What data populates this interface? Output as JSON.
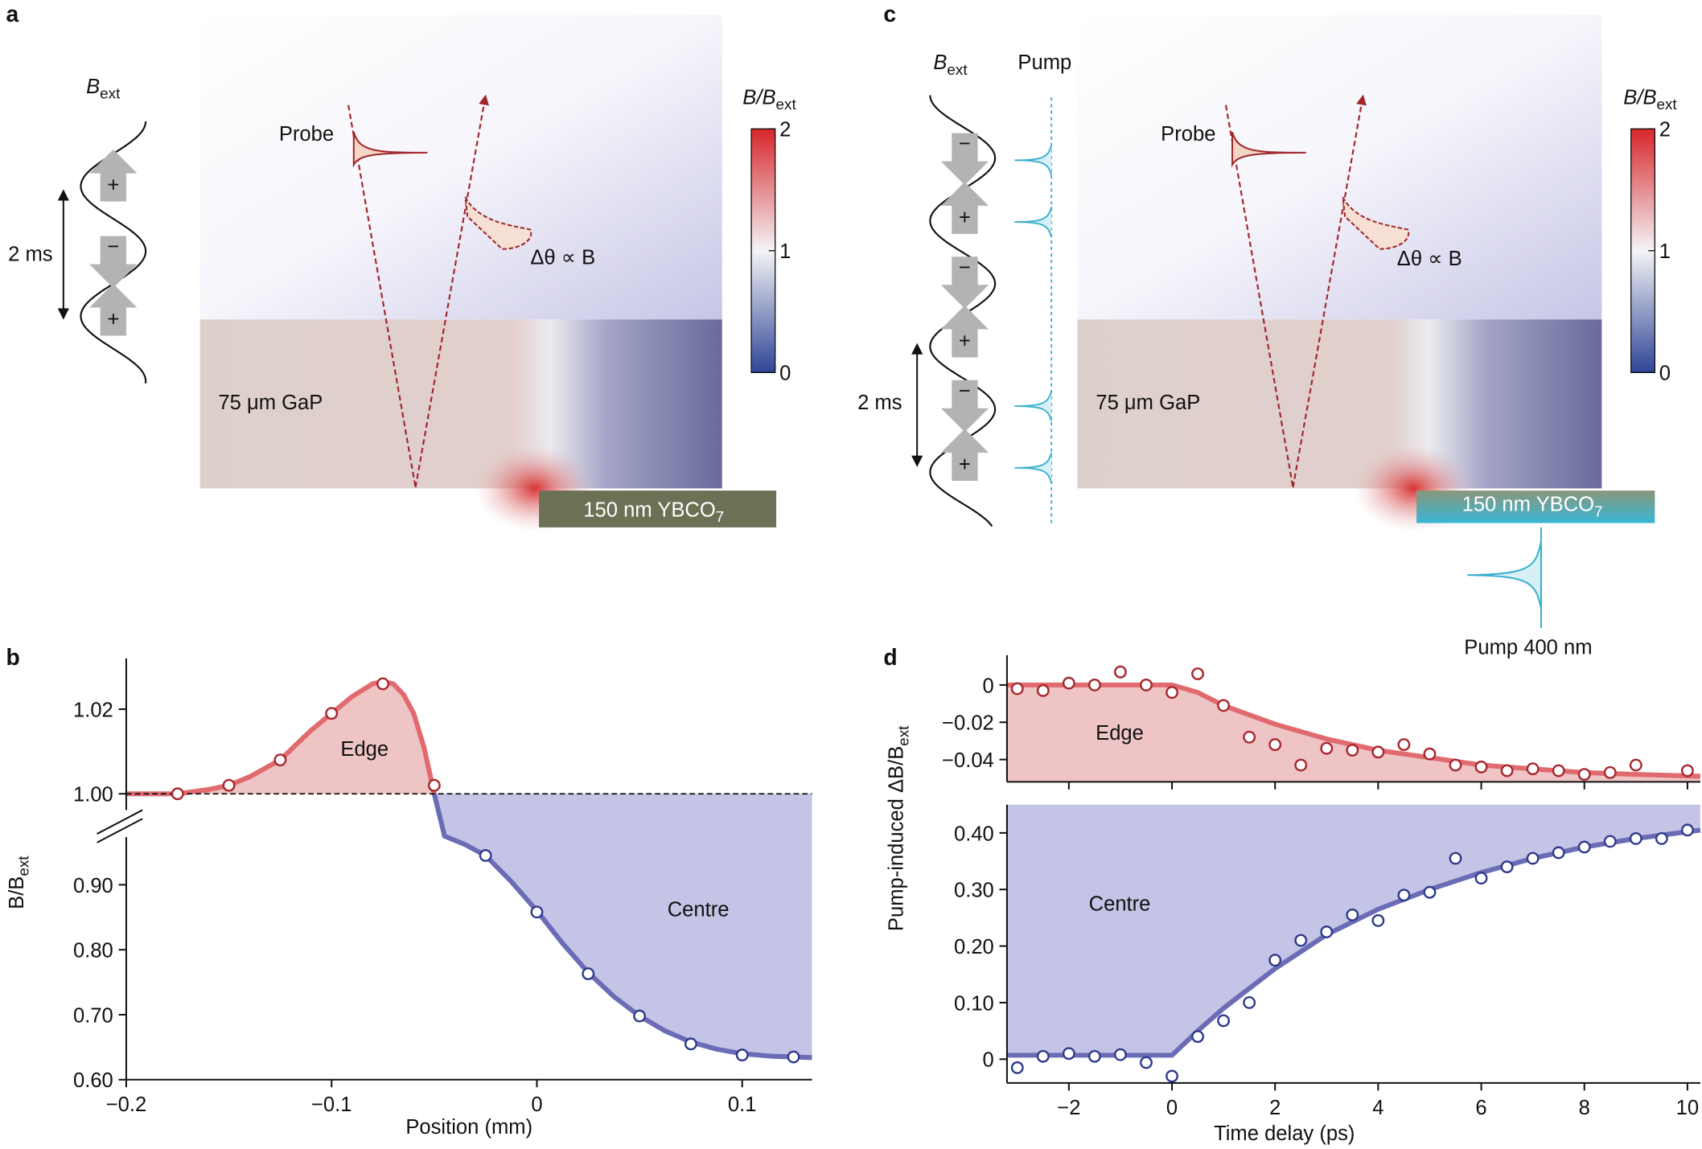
{
  "chart_data": [
    {
      "type": "scatter",
      "panel": "b",
      "xlabel": "Position (mm)",
      "ylabel": [
        "B/B",
        "ext"
      ],
      "xlim": [
        -0.2,
        0.134
      ],
      "ylim_upper": [
        0.998,
        1.032
      ],
      "ylim_lower": [
        0.6,
        0.995
      ],
      "xticks": [
        {
          "value": -0.2,
          "label": "−0.2"
        },
        {
          "value": -0.1,
          "label": "−0.1"
        },
        0,
        0.1
      ],
      "yticks": [
        {
          "value": 0.6,
          "label": "0.60"
        },
        {
          "value": 0.7,
          "label": "0.70"
        },
        {
          "value": 0.8,
          "label": "0.80"
        },
        {
          "value": 0.9,
          "label": "0.90"
        },
        {
          "value": 1.0,
          "label": "1.00"
        },
        {
          "value": 1.02,
          "label": "1.02"
        }
      ],
      "reference_line": 1.0,
      "series": [
        {
          "name": "Edge",
          "color": "#a8262d",
          "x": [
            -0.175,
            -0.15,
            -0.125,
            -0.1,
            -0.075,
            -0.05
          ],
          "values": [
            1.0,
            1.002,
            1.008,
            1.019,
            1.026,
            1.002
          ]
        },
        {
          "name": "Centre",
          "color": "#2f3a8c",
          "x": [
            -0.025,
            0,
            0.025,
            0.05,
            0.075,
            0.1,
            0.125
          ],
          "values": [
            0.945,
            0.858,
            0.763,
            0.698,
            0.655,
            0.638,
            0.635
          ]
        }
      ],
      "fits": [
        {
          "color": "#e06a6e",
          "fill": "#efc4c5",
          "x": [
            -0.2,
            -0.175,
            -0.16,
            -0.15,
            -0.14,
            -0.125,
            -0.11,
            -0.1,
            -0.09,
            -0.08,
            -0.075,
            -0.07,
            -0.065,
            -0.06,
            -0.055,
            -0.05
          ],
          "values": [
            1.0,
            1.0,
            1.001,
            1.002,
            1.004,
            1.008,
            1.015,
            1.019,
            1.023,
            1.026,
            1.0265,
            1.026,
            1.0235,
            1.019,
            1.011,
            1.0
          ]
        },
        {
          "color": "#6a6db5",
          "fill": "#c4c4e6",
          "x": [
            -0.05,
            -0.045,
            -0.035,
            -0.025,
            -0.0125,
            0,
            0.0125,
            0.025,
            0.0375,
            0.05,
            0.0625,
            0.075,
            0.0875,
            0.1,
            0.115,
            0.134
          ],
          "values": [
            1.0,
            0.975,
            0.962,
            0.945,
            0.905,
            0.86,
            0.81,
            0.765,
            0.728,
            0.698,
            0.675,
            0.658,
            0.647,
            0.64,
            0.636,
            0.634
          ]
        }
      ]
    },
    {
      "type": "scatter",
      "panel": "d",
      "xlim": [
        -3.2,
        10.25
      ],
      "ylim": [
        -0.052,
        0.016
      ],
      "xticks": [
        -2,
        0,
        2,
        4,
        6,
        8,
        10
      ],
      "yticks": [
        0,
        {
          "value": -0.02,
          "label": "−0.02"
        },
        {
          "value": -0.04,
          "label": "−0.04"
        }
      ],
      "series": [
        {
          "name": "Edge",
          "color": "#a8262d",
          "x": [
            -3,
            -2.5,
            -2,
            -1.5,
            -1,
            -0.5,
            0,
            0.5,
            1,
            1.5,
            2,
            2.5,
            3,
            3.5,
            4,
            4.5,
            5,
            5.5,
            6,
            6.5,
            7,
            7.5,
            8,
            8.5,
            9,
            10
          ],
          "values": [
            -0.002,
            -0.003,
            0.001,
            0.0,
            0.007,
            0.0,
            -0.004,
            0.006,
            -0.011,
            -0.028,
            -0.032,
            -0.043,
            -0.034,
            -0.035,
            -0.036,
            -0.032,
            -0.037,
            -0.043,
            -0.044,
            -0.046,
            -0.045,
            -0.046,
            -0.048,
            -0.047,
            -0.043,
            -0.046
          ]
        }
      ],
      "fits": [
        {
          "color": "#e06a6e",
          "fill": "#efc4c5",
          "x": [
            -3.2,
            0,
            0.5,
            1,
            2,
            3,
            4,
            5,
            6,
            7,
            8,
            9,
            10.25
          ],
          "values": [
            0,
            0,
            -0.004,
            -0.011,
            -0.021,
            -0.029,
            -0.035,
            -0.039,
            -0.043,
            -0.045,
            -0.047,
            -0.048,
            -0.049
          ]
        }
      ]
    },
    {
      "type": "scatter",
      "xlabel": "Time delay (ps)",
      "ylabel": [
        "Pump-induced ΔB/B",
        "ext"
      ],
      "xlim": [
        -3.2,
        10.25
      ],
      "ylim": [
        -0.042,
        0.45
      ],
      "xticks": [
        {
          "value": -2,
          "label": "−2"
        },
        0,
        2,
        4,
        6,
        8,
        10
      ],
      "yticks": [
        0,
        {
          "value": 0.1,
          "label": "0.10"
        },
        {
          "value": 0.2,
          "label": "0.20"
        },
        {
          "value": 0.3,
          "label": "0.30"
        },
        {
          "value": 0.4,
          "label": "0.40"
        }
      ],
      "series": [
        {
          "name": "Centre",
          "color": "#2f3a8c",
          "x": [
            -3,
            -2.5,
            -2,
            -1.5,
            -1,
            -0.5,
            0,
            0.5,
            1,
            1.5,
            2,
            2.5,
            3,
            3.5,
            4,
            4.5,
            5,
            5.5,
            6,
            6.5,
            7,
            7.5,
            8,
            8.5,
            9,
            9.5,
            10
          ],
          "values": [
            -0.015,
            0.005,
            0.01,
            0.005,
            0.008,
            -0.006,
            -0.03,
            0.04,
            0.068,
            0.1,
            0.175,
            0.21,
            0.225,
            0.255,
            0.245,
            0.29,
            0.295,
            0.355,
            0.32,
            0.34,
            0.355,
            0.365,
            0.375,
            0.385,
            0.39,
            0.39,
            0.405
          ]
        }
      ],
      "fits": [
        {
          "color": "#6a6db5",
          "fill": "#c4c4e6",
          "x": [
            -3.2,
            0,
            0.5,
            1,
            2,
            3,
            4,
            5,
            6,
            7,
            8,
            9,
            10.25
          ],
          "values": [
            0.007,
            0.007,
            0.05,
            0.09,
            0.16,
            0.22,
            0.265,
            0.3,
            0.33,
            0.355,
            0.375,
            0.39,
            0.405
          ]
        }
      ]
    }
  ],
  "diagrams": {
    "panel_a": {
      "label": "a",
      "field_label": [
        "B",
        "ext"
      ],
      "period": "2 ms",
      "arrows": [
        "+",
        "−",
        "+"
      ],
      "probe": "Probe",
      "rotation": "Δθ ∝ B",
      "colorbar": {
        "label": [
          "B/B",
          "ext"
        ],
        "ticks": [
          2,
          1,
          0
        ]
      },
      "substrate": "75 μm GaP",
      "film": [
        "150 nm YBCO",
        "7"
      ]
    },
    "panel_c": {
      "label": "c",
      "field_label": [
        "B",
        "ext"
      ],
      "pump": "Pump",
      "period": "2 ms",
      "arrows": [
        "−",
        "+",
        "−",
        "+",
        "−",
        "+"
      ],
      "probe": "Probe",
      "rotation": "Δθ ∝ B",
      "colorbar": {
        "label": [
          "B/B",
          "ext"
        ],
        "ticks": [
          2,
          1,
          0
        ]
      },
      "substrate": "75 μm GaP",
      "film": [
        "150 nm YBCO",
        "7"
      ],
      "pump_beam": "Pump 400 nm"
    }
  }
}
